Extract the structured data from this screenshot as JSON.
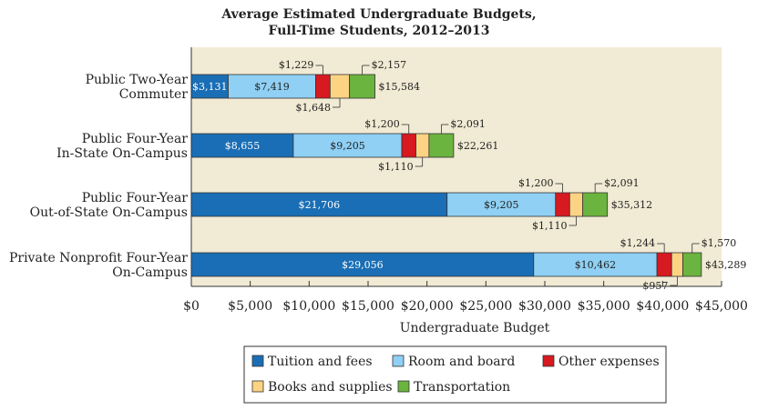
{
  "chart_data": {
    "type": "bar",
    "orientation": "horizontal",
    "stacked": true,
    "title": "Average Estimated Undergraduate Budgets,",
    "subtitle": "Full-Time Students, 2012–2013",
    "xlabel": "Undergraduate Budget",
    "ylabel": "",
    "xlim": [
      0,
      45000
    ],
    "x_ticks": [
      0,
      5000,
      10000,
      15000,
      20000,
      25000,
      30000,
      35000,
      40000,
      45000
    ],
    "x_tick_labels": [
      "$0",
      "$5,000",
      "$10,000",
      "$15,000",
      "$20,000",
      "$25,000",
      "$30,000",
      "$35,000",
      "$40,000",
      "$45,000"
    ],
    "grid": false,
    "legend_position": "bottom",
    "categories": [
      [
        "Public Two-Year",
        "Commuter"
      ],
      [
        "Public Four-Year",
        "In-State On-Campus"
      ],
      [
        "Public Four-Year",
        "Out-of-State On-Campus"
      ],
      [
        "Private Nonprofit Four-Year",
        "On-Campus"
      ]
    ],
    "series": [
      {
        "name": "Tuition and fees",
        "color": "#1a6eb5",
        "values": [
          3131,
          8655,
          21706,
          29056
        ],
        "labels": [
          "$3,131",
          "$8,655",
          "$21,706",
          "$29,056"
        ]
      },
      {
        "name": "Room and board",
        "color": "#8fd0f4",
        "values": [
          7419,
          9205,
          9205,
          10462
        ],
        "labels": [
          "$7,419",
          "$9,205",
          "$9,205",
          "$10,462"
        ]
      },
      {
        "name": "Other expenses",
        "color": "#d71920",
        "values": [
          1229,
          1200,
          1200,
          1244
        ],
        "labels": [
          "$1,229",
          "$1,200",
          "$1,200",
          "$1,244"
        ]
      },
      {
        "name": "Books and supplies",
        "color": "#fcd383",
        "values": [
          1648,
          1110,
          1110,
          957
        ],
        "labels": [
          "$1,648",
          "$1,110",
          "$1,110",
          "$957"
        ]
      },
      {
        "name": "Transportation",
        "color": "#6bb43f",
        "values": [
          2157,
          2091,
          2091,
          1570
        ],
        "labels": [
          "$2,157",
          "$2,091",
          "$2,091",
          "$1,570"
        ]
      }
    ],
    "totals": [
      "$15,584",
      "$22,261",
      "$35,312",
      "$43,289"
    ]
  },
  "legend_items": [
    "Tuition and fees",
    "Room and board",
    "Other expenses",
    "Books and supplies",
    "Transportation"
  ],
  "colors": {
    "plot_background": "#f1ead4",
    "axis": "#333333",
    "text": "#222222"
  }
}
